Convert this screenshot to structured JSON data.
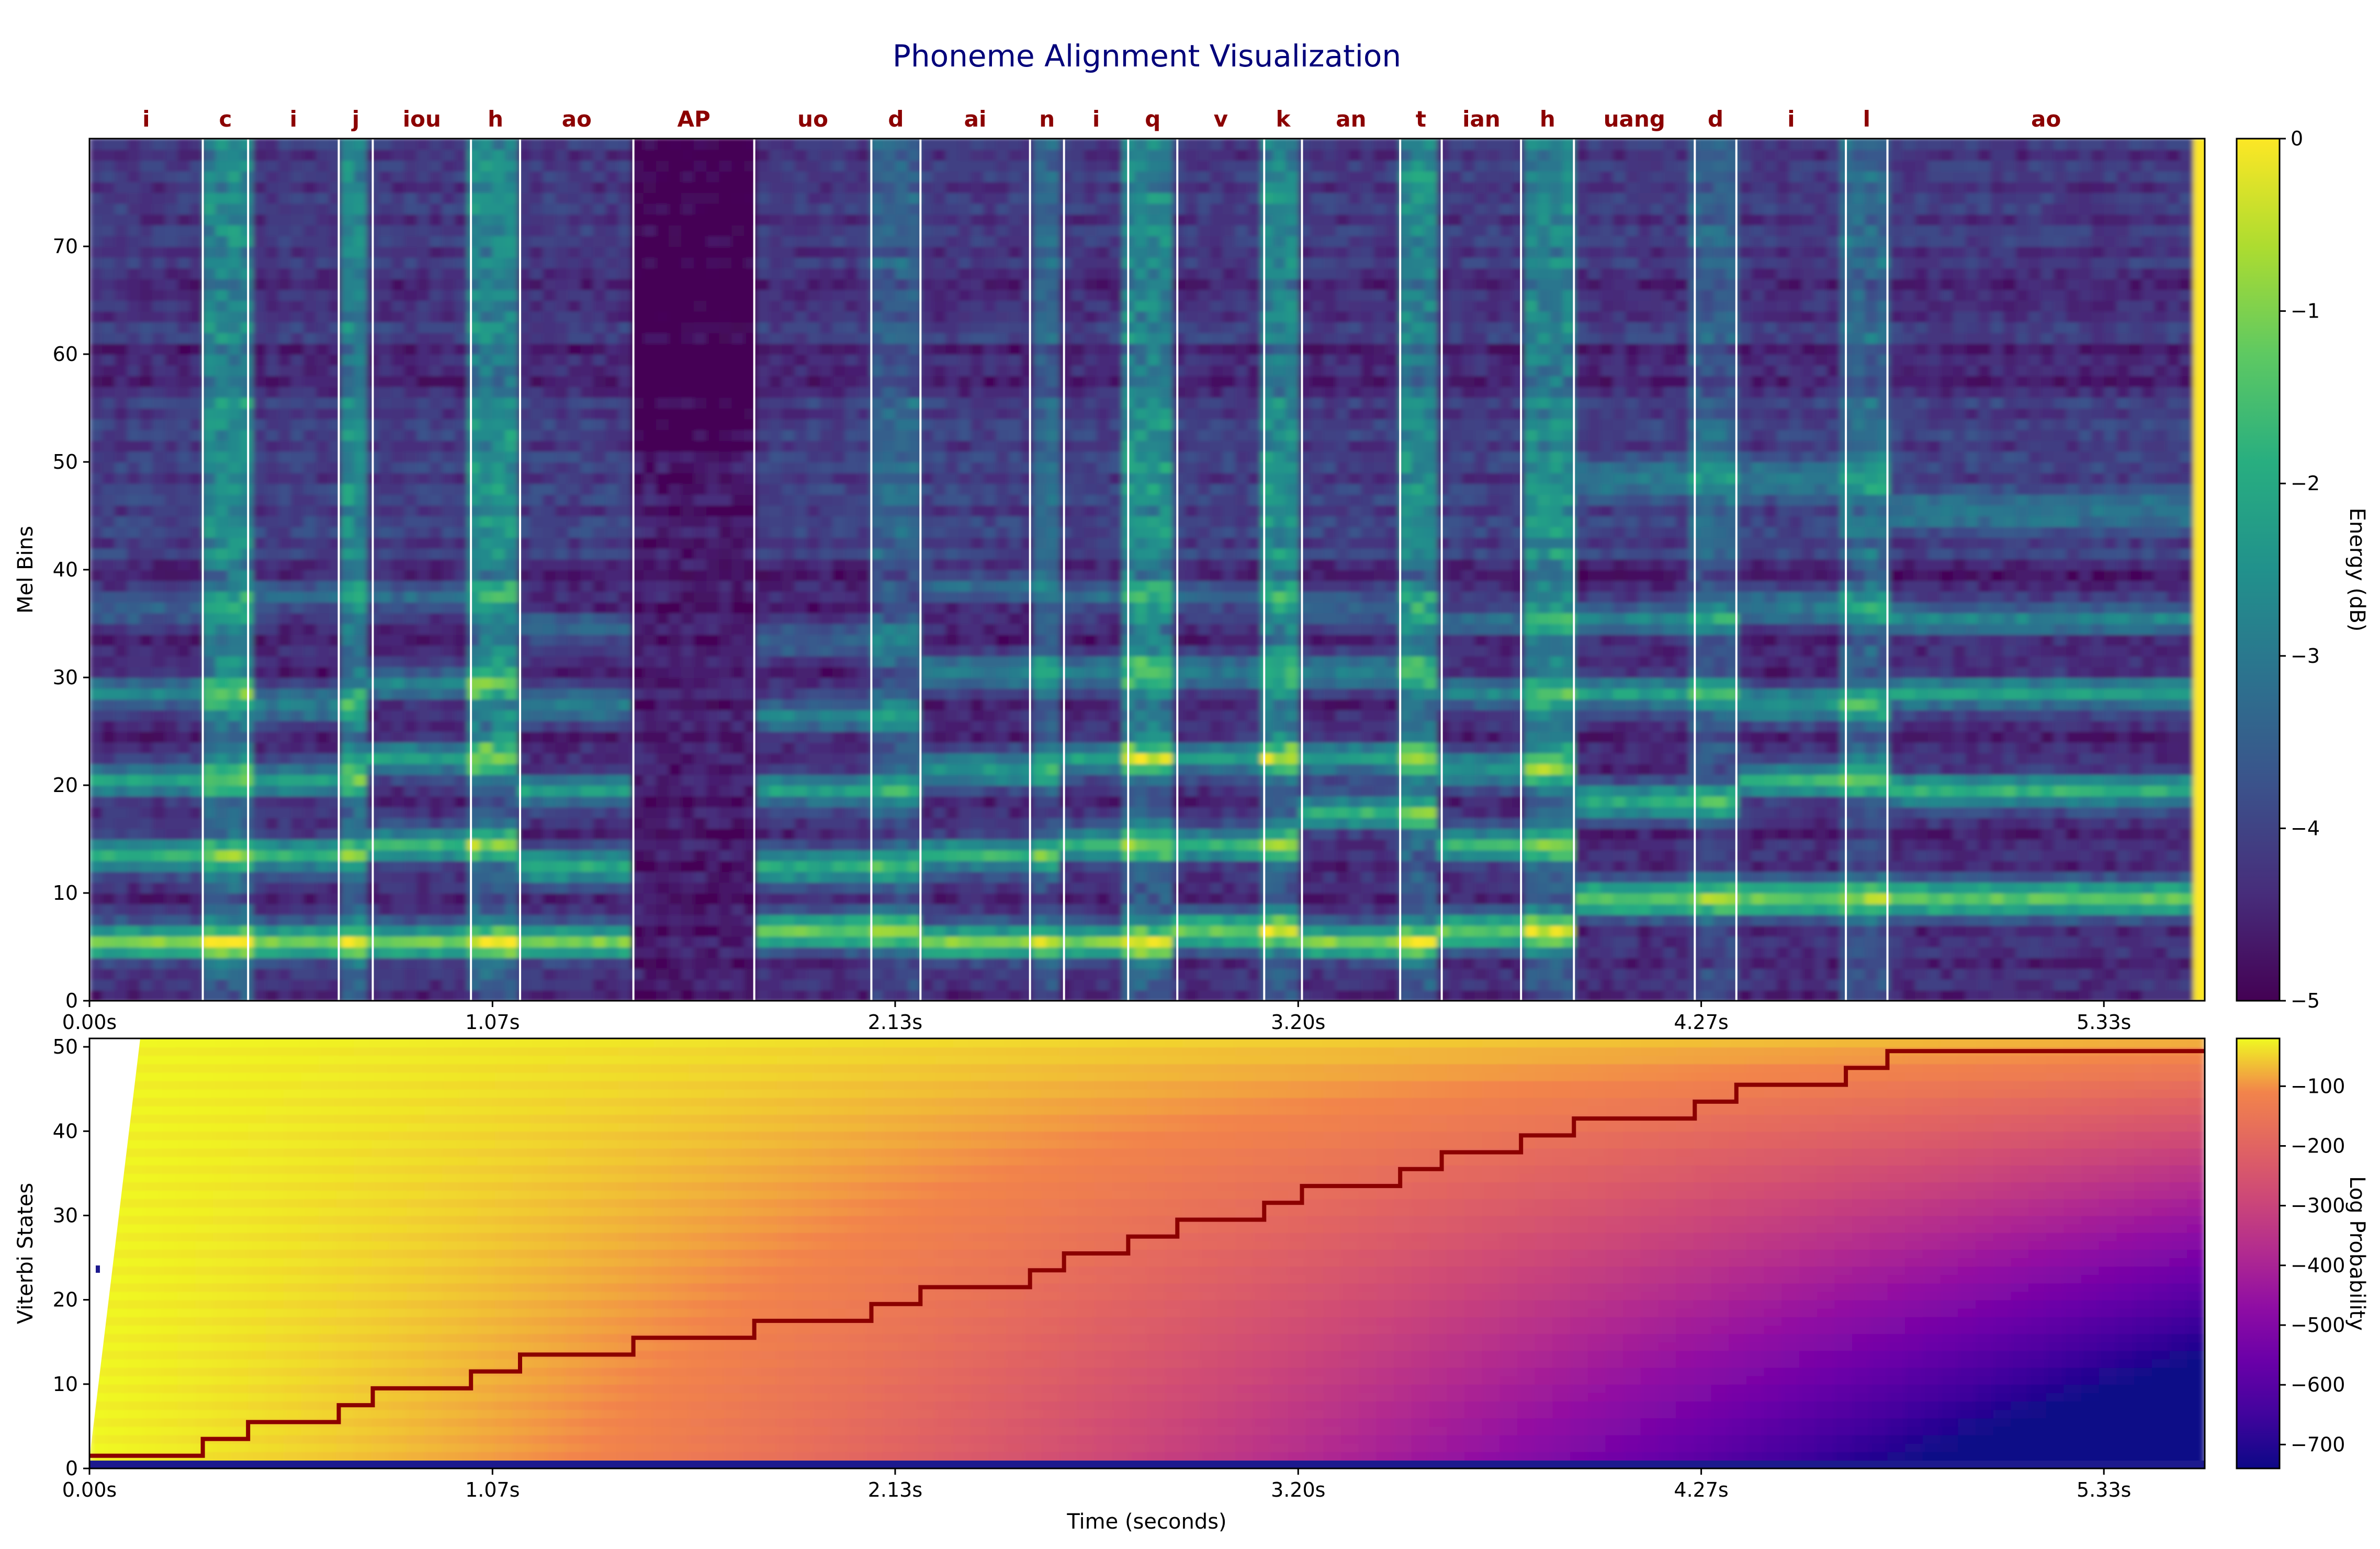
{
  "chart_data": [
    {
      "type": "heatmap",
      "title": "Phoneme Alignment Visualization",
      "ylabel": "Mel Bins",
      "colorbar_label": "Energy (dB)",
      "colorbar_ticks": [
        "0",
        "−1",
        "−2",
        "−3",
        "−4",
        "−5"
      ],
      "colormap": "viridis",
      "color_range": [
        -5,
        0
      ],
      "ylim": [
        0,
        80
      ],
      "xlim_seconds": [
        0,
        5.6
      ],
      "x_ticks": [
        "0.00s",
        "1.07s",
        "2.13s",
        "3.20s",
        "4.27s",
        "5.33s"
      ],
      "x_tick_values": [
        0,
        1.067,
        2.133,
        3.2,
        4.267,
        5.333
      ],
      "y_ticks": [
        "0",
        "10",
        "20",
        "30",
        "40",
        "50",
        "60",
        "70"
      ],
      "phonemes": [
        {
          "label": "i",
          "start": 0.0,
          "end": 0.3
        },
        {
          "label": "c",
          "start": 0.3,
          "end": 0.42
        },
        {
          "label": "i",
          "start": 0.42,
          "end": 0.66
        },
        {
          "label": "j",
          "start": 0.66,
          "end": 0.75
        },
        {
          "label": "iou",
          "start": 0.75,
          "end": 1.01
        },
        {
          "label": "h",
          "start": 1.01,
          "end": 1.14
        },
        {
          "label": "ao",
          "start": 1.14,
          "end": 1.44
        },
        {
          "label": "AP",
          "start": 1.44,
          "end": 1.76
        },
        {
          "label": "uo",
          "start": 1.76,
          "end": 2.07
        },
        {
          "label": "d",
          "start": 2.07,
          "end": 2.2
        },
        {
          "label": "ai",
          "start": 2.2,
          "end": 2.49
        },
        {
          "label": "n",
          "start": 2.49,
          "end": 2.58
        },
        {
          "label": "i",
          "start": 2.58,
          "end": 2.75
        },
        {
          "label": "q",
          "start": 2.75,
          "end": 2.88
        },
        {
          "label": "v",
          "start": 2.88,
          "end": 3.11
        },
        {
          "label": "k",
          "start": 3.11,
          "end": 3.21
        },
        {
          "label": "an",
          "start": 3.21,
          "end": 3.47
        },
        {
          "label": "t",
          "start": 3.47,
          "end": 3.58
        },
        {
          "label": "ian",
          "start": 3.58,
          "end": 3.79
        },
        {
          "label": "h",
          "start": 3.79,
          "end": 3.93
        },
        {
          "label": "uang",
          "start": 3.93,
          "end": 4.25
        },
        {
          "label": "d",
          "start": 4.25,
          "end": 4.36
        },
        {
          "label": "i",
          "start": 4.36,
          "end": 4.65
        },
        {
          "label": "l",
          "start": 4.65,
          "end": 4.76
        },
        {
          "label": "ao",
          "start": 4.76,
          "end": 5.6
        }
      ],
      "formant_bands": [
        {
          "phoneme_index": 0,
          "bins": [
            5,
            13,
            20,
            28,
            36
          ]
        },
        {
          "phoneme_index": 2,
          "bins": [
            5,
            13,
            20,
            27,
            37
          ]
        },
        {
          "phoneme_index": 4,
          "bins": [
            5,
            14,
            22,
            29,
            37
          ]
        },
        {
          "phoneme_index": 6,
          "bins": [
            5,
            12,
            19,
            27,
            34
          ]
        },
        {
          "phoneme_index": 8,
          "bins": [
            6,
            12,
            19,
            26,
            33
          ]
        },
        {
          "phoneme_index": 10,
          "bins": [
            5,
            13,
            21,
            30,
            38
          ]
        },
        {
          "phoneme_index": 12,
          "bins": [
            5,
            14,
            22,
            30,
            37
          ]
        },
        {
          "phoneme_index": 14,
          "bins": [
            6,
            14,
            22,
            30,
            37
          ]
        },
        {
          "phoneme_index": 16,
          "bins": [
            5,
            17,
            22,
            30,
            36
          ]
        },
        {
          "phoneme_index": 18,
          "bins": [
            6,
            14,
            21,
            28,
            35
          ]
        },
        {
          "phoneme_index": 20,
          "bins": [
            9,
            18,
            28,
            35,
            48
          ]
        },
        {
          "phoneme_index": 22,
          "bins": [
            9,
            20,
            27,
            36,
            48
          ]
        },
        {
          "phoneme_index": 24,
          "bins": [
            9,
            19,
            28,
            35,
            45
          ]
        }
      ]
    },
    {
      "type": "heatmap",
      "xlabel": "Time (seconds)",
      "ylabel": "Viterbi States",
      "colorbar_label": "Log Probability",
      "colorbar_ticks": [
        "−100",
        "−200",
        "−300",
        "−400",
        "−500",
        "−600",
        "−700"
      ],
      "colormap": "plasma",
      "color_range": [
        -740,
        -20
      ],
      "ylim": [
        0,
        51
      ],
      "xlim_seconds": [
        0,
        5.6
      ],
      "x_ticks": [
        "0.00s",
        "1.07s",
        "2.13s",
        "3.20s",
        "4.27s",
        "5.33s"
      ],
      "x_tick_values": [
        0,
        1.067,
        2.133,
        3.2,
        4.267,
        5.333
      ],
      "y_ticks": [
        "0",
        "10",
        "20",
        "30",
        "40",
        "50"
      ],
      "viterbi_path": {
        "times": [
          0.0,
          0.3,
          0.42,
          0.66,
          0.75,
          1.01,
          1.14,
          1.44,
          1.76,
          2.07,
          2.2,
          2.49,
          2.58,
          2.75,
          2.88,
          3.11,
          3.21,
          3.47,
          3.58,
          3.79,
          3.93,
          4.25,
          4.36,
          4.65,
          4.76,
          5.6
        ],
        "states": [
          1,
          3,
          5,
          7,
          9,
          11,
          13,
          15,
          17,
          19,
          21,
          23,
          25,
          27,
          29,
          31,
          33,
          35,
          37,
          39,
          41,
          43,
          45,
          47,
          49,
          49
        ]
      },
      "path_color": "#8b0000"
    }
  ]
}
